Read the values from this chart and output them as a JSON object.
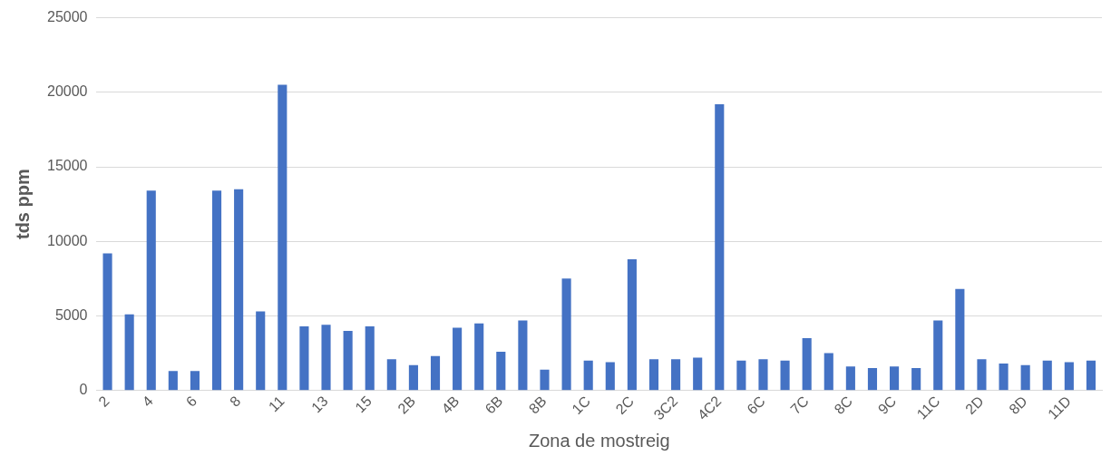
{
  "chart_data": {
    "type": "bar",
    "xlabel": "Zona de mostreig",
    "ylabel": "tds ppm",
    "categories": [
      "2",
      null,
      "4",
      null,
      "6",
      null,
      "8",
      null,
      "11",
      null,
      "13",
      null,
      "15",
      null,
      "2B",
      null,
      "4B",
      null,
      "6B",
      null,
      "8B",
      null,
      "1C",
      null,
      "2C",
      null,
      "3C2",
      null,
      "4C2",
      null,
      "6C",
      null,
      "7C",
      null,
      "8C",
      null,
      "9C",
      null,
      "11C",
      null,
      "2D",
      null,
      "8D",
      null,
      "11D",
      null
    ],
    "values": [
      9200,
      5100,
      13400,
      1300,
      1300,
      13400,
      13500,
      5300,
      20500,
      4300,
      4400,
      4000,
      4300,
      2100,
      1700,
      2300,
      4200,
      4500,
      2600,
      4700,
      1400,
      7500,
      2000,
      1900,
      8800,
      2100,
      2100,
      2200,
      19200,
      2000,
      2100,
      2000,
      3500,
      2500,
      1600,
      1500,
      1600,
      1500,
      4700,
      6800,
      2100,
      1800,
      1700,
      2000,
      1900,
      2000
    ],
    "color": "#4472c4",
    "ylim": [
      0,
      25000
    ],
    "yticks": [
      0,
      5000,
      10000,
      15000,
      20000,
      25000
    ],
    "grid": "y"
  }
}
